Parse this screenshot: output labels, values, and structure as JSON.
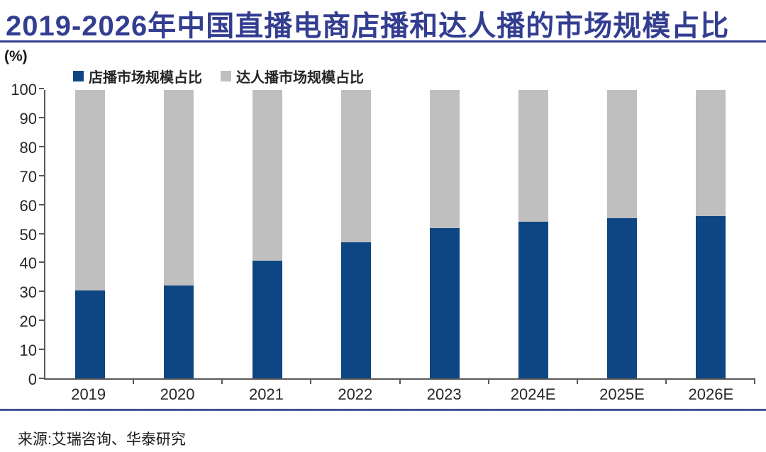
{
  "title": "2019-2026年中国直播电商店播和达人播的市场规模占比",
  "y_axis_unit": "(%)",
  "source": "来源:艾瑞咨询、华泰研究",
  "colors": {
    "title_navy": "#333E91",
    "store_blue": "#0D4682",
    "influencer_gray": "#BFBFBF",
    "axis_gray": "#595959",
    "tick_text": "#262626",
    "bottom_rule_navy": "#3A4A96"
  },
  "chart_data": {
    "type": "bar",
    "stacked": true,
    "title": "2019-2026年中国直播电商店播和达人播的市场规模占比",
    "ylabel": "(%)",
    "ylim": [
      0,
      100
    ],
    "yticks": [
      0,
      10,
      20,
      30,
      40,
      50,
      60,
      70,
      80,
      90,
      100
    ],
    "grid": false,
    "legend_position": "top",
    "categories": [
      "2019",
      "2020",
      "2021",
      "2022",
      "2023",
      "2024E",
      "2025E",
      "2026E"
    ],
    "series": [
      {
        "name": "店播市场规模占比",
        "key": "store-broadcast",
        "color": "#0D4682",
        "values": [
          30.4,
          32.1,
          40.7,
          47.1,
          52.0,
          54.2,
          55.5,
          56.3
        ]
      },
      {
        "name": "达人播市场规模占比",
        "key": "influencer-broadcast",
        "color": "#BFBFBF",
        "values": [
          69.6,
          67.9,
          59.3,
          52.9,
          48.0,
          45.8,
          44.5,
          43.7
        ]
      }
    ]
  }
}
